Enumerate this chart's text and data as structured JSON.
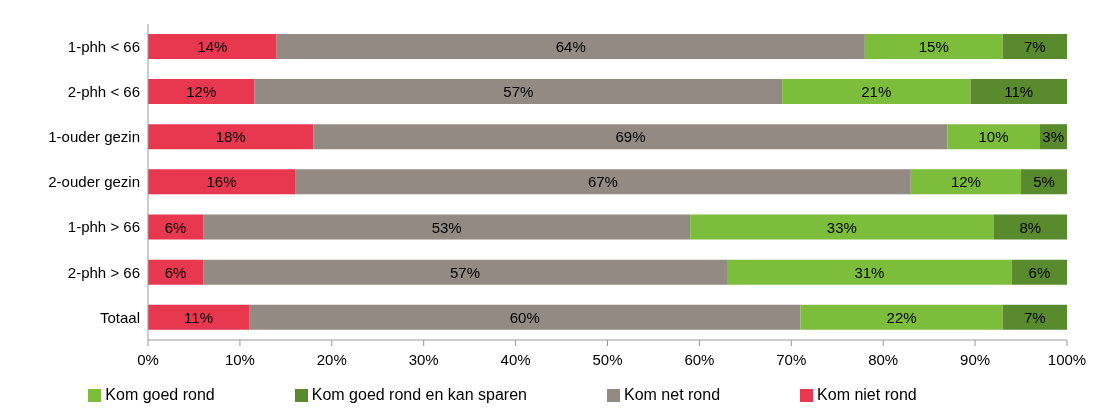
{
  "chart_data": {
    "type": "bar",
    "orientation": "horizontal",
    "stacked": true,
    "categories": [
      "1-phh < 66",
      "2-phh < 66",
      "1-ouder gezin",
      "2-ouder gezin",
      "1-phh > 66",
      "2-phh > 66",
      "Totaal"
    ],
    "series": [
      {
        "name": "Kom niet rond",
        "color": "#e8384f",
        "values": [
          14,
          11.6,
          18,
          16,
          6,
          6,
          11
        ],
        "value_labels": [
          "14%",
          "12%",
          "18%",
          "16%",
          "6%",
          "6%",
          "11%"
        ]
      },
      {
        "name": "Kom net rond",
        "color": "#948a84",
        "values": [
          64,
          57.4,
          69,
          67,
          53,
          57,
          60
        ],
        "value_labels": [
          "64%",
          "57%",
          "69%",
          "67%",
          "53%",
          "57%",
          "60%"
        ]
      },
      {
        "name": "Kom goed rond",
        "color": "#7dbd3c",
        "values": [
          15,
          20.5,
          10,
          12,
          33,
          31,
          22
        ],
        "value_labels": [
          "15%",
          "21%",
          "10%",
          "12%",
          "33%",
          "31%",
          "22%"
        ]
      },
      {
        "name": "Kom goed rond en kan sparen",
        "color": "#5a8a2e",
        "values": [
          7,
          10.5,
          3,
          5,
          8,
          6,
          7
        ],
        "value_labels": [
          "7%",
          "11%",
          "3%",
          "5%",
          "8%",
          "6%",
          "7%"
        ]
      }
    ],
    "xlim": [
      0,
      100
    ],
    "xticks": [
      {
        "value": 0,
        "label": "0%"
      },
      {
        "value": 10,
        "label": "10%"
      },
      {
        "value": 20,
        "label": "20%"
      },
      {
        "value": 30,
        "label": "30%"
      },
      {
        "value": 40,
        "label": "40%"
      },
      {
        "value": 50,
        "label": "50%"
      },
      {
        "value": 60,
        "label": "60%"
      },
      {
        "value": 70,
        "label": "70%"
      },
      {
        "value": 80,
        "label": "80%"
      },
      {
        "value": 90,
        "label": "90%"
      },
      {
        "value": 100,
        "label": "100%"
      }
    ],
    "legend": "bottom"
  }
}
